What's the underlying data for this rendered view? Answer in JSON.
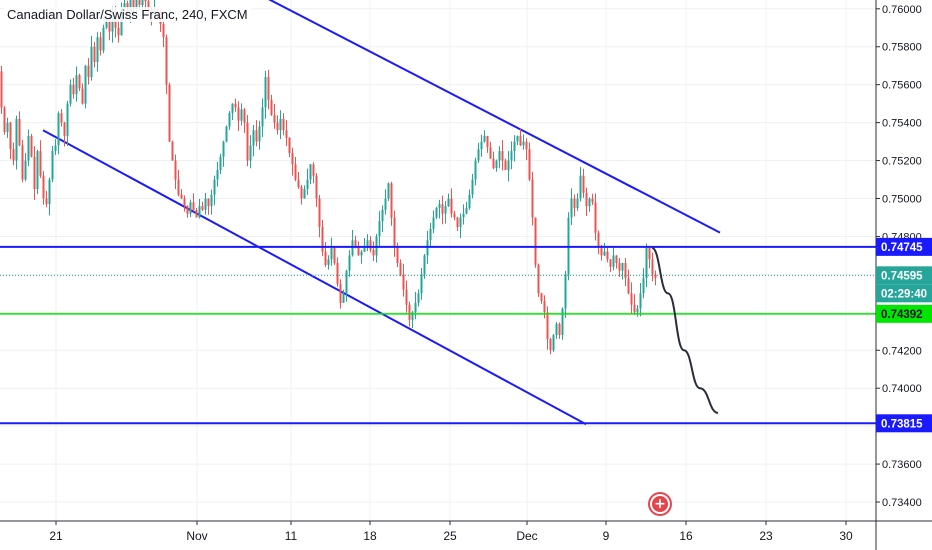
{
  "chart_data": {
    "type": "candlestick",
    "title": "Canadian Dollar/Swiss Franc, 240, FXCM",
    "ylim": [
      0.733,
      0.7602
    ],
    "y_ticks": [
      "0.73400",
      "0.73600",
      "0.73800",
      "0.74000",
      "0.74200",
      "0.74400",
      "0.74600",
      "0.74800",
      "0.75000",
      "0.75200",
      "0.75400",
      "0.75600",
      "0.75800",
      "0.76000"
    ],
    "x_tick_labels": [
      "21",
      "Nov",
      "11",
      "18",
      "25",
      "Dec",
      "9",
      "16",
      "23",
      "30"
    ],
    "colors": {
      "up": "#26a69a",
      "down": "#ef5350",
      "trend": "#1a1aff",
      "support": "#1a1aff",
      "green_level": "#00e600",
      "forecast": "#2a2e39",
      "axis_text": "#131722"
    },
    "candle_path": [
      [
        0,
        0.7567
      ],
      [
        3,
        0.7548
      ],
      [
        6,
        0.7535
      ],
      [
        9,
        0.754
      ],
      [
        12,
        0.7526
      ],
      [
        15,
        0.752
      ],
      [
        18,
        0.7542
      ],
      [
        21,
        0.7528
      ],
      [
        24,
        0.751
      ],
      [
        27,
        0.752
      ],
      [
        30,
        0.7533
      ],
      [
        33,
        0.7522
      ],
      [
        36,
        0.7505
      ],
      [
        39,
        0.7525
      ],
      [
        42,
        0.7512
      ],
      [
        45,
        0.75
      ],
      [
        48,
        0.7497
      ],
      [
        51,
        0.751
      ],
      [
        54,
        0.7525
      ],
      [
        57,
        0.7528
      ],
      [
        60,
        0.7545
      ],
      [
        63,
        0.754
      ],
      [
        66,
        0.7533
      ],
      [
        69,
        0.755
      ],
      [
        72,
        0.756
      ],
      [
        75,
        0.7555
      ],
      [
        78,
        0.7565
      ],
      [
        81,
        0.7558
      ],
      [
        84,
        0.755
      ],
      [
        87,
        0.757
      ],
      [
        90,
        0.7564
      ],
      [
        93,
        0.758
      ],
      [
        96,
        0.7572
      ],
      [
        99,
        0.7585
      ],
      [
        102,
        0.7578
      ],
      [
        105,
        0.759
      ],
      [
        108,
        0.7595
      ],
      [
        111,
        0.7588
      ],
      [
        114,
        0.7596
      ],
      [
        117,
        0.759
      ],
      [
        120,
        0.7586
      ],
      [
        123,
        0.76
      ],
      [
        126,
        0.7603
      ],
      [
        129,
        0.7597
      ],
      [
        132,
        0.7605
      ],
      [
        135,
        0.76
      ],
      [
        138,
        0.7608
      ],
      [
        141,
        0.7602
      ],
      [
        144,
        0.761
      ],
      [
        147,
        0.7604
      ],
      [
        150,
        0.76
      ],
      [
        153,
        0.7596
      ],
      [
        156,
        0.76
      ],
      [
        159,
        0.7595
      ],
      [
        162,
        0.7592
      ],
      [
        165,
        0.7585
      ],
      [
        168,
        0.756
      ],
      [
        171,
        0.753
      ],
      [
        174,
        0.752
      ],
      [
        177,
        0.751
      ],
      [
        180,
        0.7502
      ],
      [
        183,
        0.75
      ],
      [
        186,
        0.7496
      ],
      [
        189,
        0.7492
      ],
      [
        192,
        0.7498
      ],
      [
        195,
        0.7494
      ],
      [
        198,
        0.749
      ],
      [
        201,
        0.7496
      ],
      [
        204,
        0.7494
      ],
      [
        207,
        0.75
      ],
      [
        210,
        0.7496
      ],
      [
        213,
        0.7502
      ],
      [
        216,
        0.751
      ],
      [
        219,
        0.7515
      ],
      [
        222,
        0.7522
      ],
      [
        225,
        0.753
      ],
      [
        228,
        0.7538
      ],
      [
        231,
        0.7545
      ],
      [
        234,
        0.755
      ],
      [
        237,
        0.7548
      ],
      [
        240,
        0.7541
      ],
      [
        243,
        0.7547
      ],
      [
        246,
        0.754
      ],
      [
        249,
        0.752
      ],
      [
        252,
        0.7528
      ],
      [
        255,
        0.7536
      ],
      [
        258,
        0.753
      ],
      [
        261,
        0.7538
      ],
      [
        264,
        0.7548
      ],
      [
        267,
        0.7564
      ],
      [
        270,
        0.7552
      ],
      [
        273,
        0.7544
      ],
      [
        276,
        0.754
      ],
      [
        279,
        0.7536
      ],
      [
        282,
        0.7542
      ],
      [
        285,
        0.7536
      ],
      [
        288,
        0.7532
      ],
      [
        291,
        0.7524
      ],
      [
        294,
        0.7518
      ],
      [
        297,
        0.751
      ],
      [
        300,
        0.7506
      ],
      [
        303,
        0.75
      ],
      [
        306,
        0.7505
      ],
      [
        309,
        0.751
      ],
      [
        312,
        0.7518
      ],
      [
        315,
        0.7512
      ],
      [
        318,
        0.75
      ],
      [
        321,
        0.7485
      ],
      [
        324,
        0.7472
      ],
      [
        327,
        0.7465
      ],
      [
        330,
        0.7468
      ],
      [
        333,
        0.7474
      ],
      [
        336,
        0.7466
      ],
      [
        339,
        0.7455
      ],
      [
        342,
        0.7445
      ],
      [
        345,
        0.745
      ],
      [
        348,
        0.7462
      ],
      [
        351,
        0.747
      ],
      [
        354,
        0.7478
      ],
      [
        357,
        0.7475
      ],
      [
        360,
        0.747
      ],
      [
        363,
        0.7472
      ],
      [
        366,
        0.7474
      ],
      [
        369,
        0.7478
      ],
      [
        372,
        0.7473
      ],
      [
        375,
        0.747
      ],
      [
        378,
        0.748
      ],
      [
        381,
        0.7488
      ],
      [
        384,
        0.7494
      ],
      [
        387,
        0.75
      ],
      [
        390,
        0.7508
      ],
      [
        393,
        0.749
      ],
      [
        396,
        0.7475
      ],
      [
        399,
        0.7466
      ],
      [
        402,
        0.746
      ],
      [
        405,
        0.7452
      ],
      [
        408,
        0.7444
      ],
      [
        411,
        0.7436
      ],
      [
        414,
        0.744
      ],
      [
        417,
        0.7445
      ],
      [
        420,
        0.745
      ],
      [
        423,
        0.746
      ],
      [
        426,
        0.747
      ],
      [
        429,
        0.7478
      ],
      [
        432,
        0.7484
      ],
      [
        435,
        0.749
      ],
      [
        438,
        0.7495
      ],
      [
        441,
        0.7497
      ],
      [
        444,
        0.7492
      ],
      [
        447,
        0.7496
      ],
      [
        450,
        0.75
      ],
      [
        453,
        0.7492
      ],
      [
        456,
        0.749
      ],
      [
        459,
        0.7485
      ],
      [
        462,
        0.749
      ],
      [
        465,
        0.7492
      ],
      [
        468,
        0.7495
      ],
      [
        471,
        0.7502
      ],
      [
        474,
        0.751
      ],
      [
        477,
        0.752
      ],
      [
        480,
        0.7526
      ],
      [
        483,
        0.753
      ],
      [
        486,
        0.7533
      ],
      [
        489,
        0.7527
      ],
      [
        492,
        0.7521
      ],
      [
        495,
        0.7516
      ],
      [
        498,
        0.752
      ],
      [
        501,
        0.7525
      ],
      [
        504,
        0.752
      ],
      [
        507,
        0.7515
      ],
      [
        510,
        0.752
      ],
      [
        513,
        0.7525
      ],
      [
        516,
        0.753
      ],
      [
        519,
        0.7533
      ],
      [
        522,
        0.7528
      ],
      [
        525,
        0.753
      ],
      [
        528,
        0.7526
      ],
      [
        531,
        0.751
      ],
      [
        534,
        0.749
      ],
      [
        537,
        0.7465
      ],
      [
        540,
        0.745
      ],
      [
        543,
        0.7446
      ],
      [
        546,
        0.744
      ],
      [
        549,
        0.7426
      ],
      [
        552,
        0.742
      ],
      [
        555,
        0.7428
      ],
      [
        558,
        0.7434
      ],
      [
        561,
        0.7428
      ],
      [
        564,
        0.7442
      ],
      [
        567,
        0.746
      ],
      [
        570,
        0.749
      ],
      [
        573,
        0.75
      ],
      [
        576,
        0.7495
      ],
      [
        579,
        0.75
      ],
      [
        582,
        0.7512
      ],
      [
        585,
        0.7503
      ],
      [
        588,
        0.7496
      ],
      [
        591,
        0.75
      ],
      [
        594,
        0.7498
      ],
      [
        597,
        0.7482
      ],
      [
        600,
        0.7475
      ],
      [
        603,
        0.747
      ],
      [
        606,
        0.7472
      ],
      [
        609,
        0.7468
      ],
      [
        612,
        0.7464
      ],
      [
        615,
        0.747
      ],
      [
        618,
        0.7466
      ],
      [
        621,
        0.7462
      ],
      [
        624,
        0.7466
      ],
      [
        627,
        0.7458
      ],
      [
        630,
        0.745
      ],
      [
        633,
        0.7444
      ],
      [
        636,
        0.744
      ],
      [
        639,
        0.7442
      ],
      [
        642,
        0.745
      ],
      [
        645,
        0.7458
      ],
      [
        648,
        0.7474
      ],
      [
        651,
        0.7468
      ],
      [
        654,
        0.746
      ],
      [
        657,
        0.7458
      ]
    ],
    "lines": {
      "upper_channel": [
        [
          258,
          0.7608
        ],
        [
          720,
          0.7482
        ]
      ],
      "lower_channel": [
        [
          43,
          0.7536
        ],
        [
          586,
          0.7381
        ]
      ],
      "resistance_level": 0.74745,
      "support_level": 0.73815,
      "green_level": 0.74392,
      "current_price": 0.74595,
      "forecast": [
        [
          652,
          0.7474
        ],
        [
          668,
          0.745
        ],
        [
          684,
          0.742
        ],
        [
          700,
          0.74
        ],
        [
          718,
          0.7387
        ]
      ]
    },
    "price_labels": {
      "resistance": "0.74745",
      "current": "0.74595",
      "countdown": "02:29:40",
      "green": "0.74392",
      "support": "0.73815"
    }
  }
}
